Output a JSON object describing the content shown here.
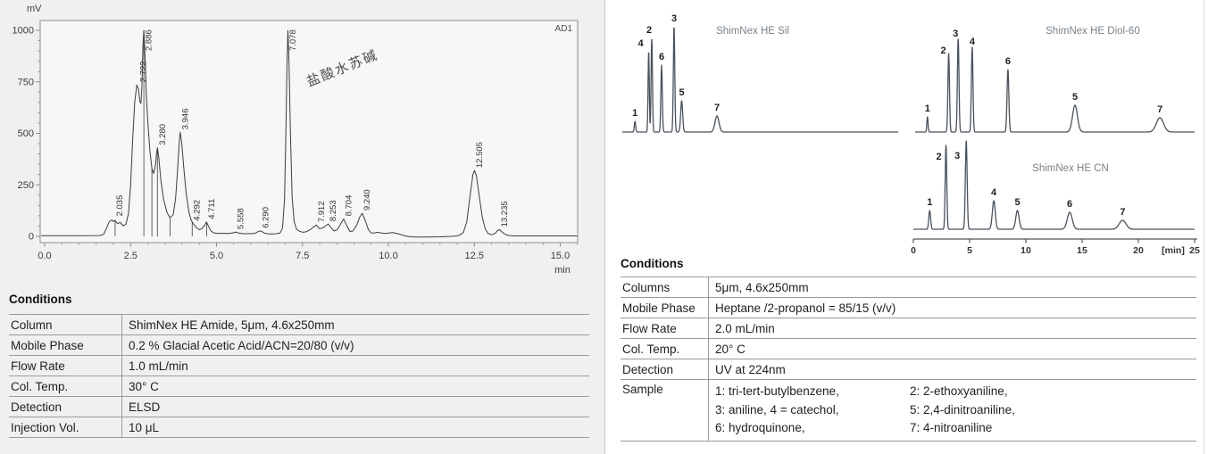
{
  "colors": {
    "left_panel_bg": "#f0f0f1",
    "plot_bg": "#f7f7f8",
    "frame": "#8c8c8c",
    "curve_left": "#3d3d3d",
    "curve_right": "#49525c",
    "table_line": "#9a9a9a",
    "chart_title_text": "#79828a",
    "axis_text": "#3c3c3c"
  },
  "left_panel": {
    "plot": {
      "y_axis_unit": "mV",
      "x_axis_unit": "min",
      "channel_label": "AD1",
      "annotation": "盐酸水苏碱",
      "y_tick_labels": [
        "0",
        "250",
        "500",
        "750",
        "1000"
      ],
      "x_tick_labels": [
        "0.0",
        "2.5",
        "5.0",
        "7.5",
        "10.0",
        "12.5",
        "15.0"
      ]
    },
    "conditions_title": "Conditions",
    "conditions_rows": [
      {
        "label": "Column",
        "value": "ShimNex HE Amide, 5μm, 4.6x250mm"
      },
      {
        "label": "Mobile Phase",
        "value": "0.2 % Glacial Acetic Acid/ACN=20/80 (v/v)"
      },
      {
        "label": "Flow Rate",
        "value": "1.0 mL/min"
      },
      {
        "label": "Col. Temp.",
        "value": "30° C"
      },
      {
        "label": "Detection",
        "value": "ELSD"
      },
      {
        "label": "Injection Vol.",
        "value": "10 μL"
      }
    ]
  },
  "right_panel": {
    "axis_tick_labels": [
      "0",
      "5",
      "10",
      "15",
      "20",
      "25"
    ],
    "axis_unit": "[min]",
    "conditions_title": "Conditions",
    "conditions_rows": [
      {
        "label": "Columns",
        "value": "5μm, 4.6x250mm"
      },
      {
        "label": "Mobile Phase",
        "value": "Heptane /2-propanol = 85/15 (v/v)"
      },
      {
        "label": "Flow Rate",
        "value": "2.0 mL/min"
      },
      {
        "label": "Col. Temp.",
        "value": "20° C"
      },
      {
        "label": "Detection",
        "value": "UV at 224nm"
      }
    ],
    "sample_row": {
      "label": "Sample",
      "col1": [
        "1: tri-tert-butylbenzene,",
        "3: aniline,   4 = catechol,",
        "6: hydroquinone,"
      ],
      "col2": [
        "2: 2-ethoxyaniline,",
        "5: 2,4-dinitroaniline,",
        "7: 4-nitroaniline"
      ]
    }
  },
  "chart_data": [
    {
      "id": "he-amide",
      "type": "line",
      "title": "",
      "detector": "AD1",
      "xlabel": "min",
      "ylabel": "mV",
      "xlim": [
        0,
        15.5
      ],
      "ylim": [
        0,
        1050
      ],
      "x_ticks": [
        0,
        2.5,
        5,
        7.5,
        10,
        12.5,
        15
      ],
      "y_ticks": [
        0,
        250,
        500,
        750,
        1000
      ],
      "annotation": {
        "text": "盐酸水苏碱",
        "peak_rt": 7.078
      },
      "peaks": [
        {
          "label": "2.035",
          "rt": 2.035,
          "mv": 85
        },
        {
          "label": "2.722",
          "rt": 2.722,
          "mv": 735
        },
        {
          "label": "2.886",
          "rt": 2.886,
          "mv": 1000
        },
        {
          "label": "3.280",
          "rt": 3.28,
          "mv": 430
        },
        {
          "label": "3.946",
          "rt": 3.946,
          "mv": 505
        },
        {
          "label": "4.292",
          "rt": 4.292,
          "mv": 62
        },
        {
          "label": "4.711",
          "rt": 4.711,
          "mv": 70
        },
        {
          "label": "5.558",
          "rt": 5.558,
          "mv": 21
        },
        {
          "label": "6.290",
          "rt": 6.29,
          "mv": 27
        },
        {
          "label": "7.078",
          "rt": 7.078,
          "mv": 1000
        },
        {
          "label": "7.912",
          "rt": 7.912,
          "mv": 55
        },
        {
          "label": "8.253",
          "rt": 8.253,
          "mv": 60
        },
        {
          "label": "8.704",
          "rt": 8.704,
          "mv": 85
        },
        {
          "label": "9.240",
          "rt": 9.24,
          "mv": 112
        },
        {
          "label": "12.505",
          "rt": 12.505,
          "mv": 320
        },
        {
          "label": "13.235",
          "rt": 13.235,
          "mv": 33
        }
      ],
      "drop_lines": [
        2.05,
        2.886,
        3.12,
        3.28,
        3.65,
        4.292,
        4.711
      ],
      "curve_points": [
        [
          -0.1,
          3
        ],
        [
          0,
          3
        ],
        [
          1,
          3
        ],
        [
          1.6,
          4
        ],
        [
          1.72,
          10
        ],
        [
          1.8,
          40
        ],
        [
          1.88,
          72
        ],
        [
          1.95,
          80
        ],
        [
          2,
          72
        ],
        [
          2.05,
          78
        ],
        [
          2.12,
          62
        ],
        [
          2.2,
          68
        ],
        [
          2.28,
          52
        ],
        [
          2.36,
          58
        ],
        [
          2.44,
          110
        ],
        [
          2.5,
          250
        ],
        [
          2.56,
          470
        ],
        [
          2.62,
          650
        ],
        [
          2.68,
          735
        ],
        [
          2.73,
          715
        ],
        [
          2.77,
          655
        ],
        [
          2.8,
          645
        ],
        [
          2.83,
          730
        ],
        [
          2.86,
          930
        ],
        [
          2.886,
          1000
        ],
        [
          2.92,
          880
        ],
        [
          2.96,
          680
        ],
        [
          3,
          560
        ],
        [
          3.06,
          420
        ],
        [
          3.12,
          330
        ],
        [
          3.17,
          305
        ],
        [
          3.22,
          340
        ],
        [
          3.26,
          410
        ],
        [
          3.28,
          430
        ],
        [
          3.32,
          385
        ],
        [
          3.38,
          275
        ],
        [
          3.46,
          180
        ],
        [
          3.56,
          115
        ],
        [
          3.65,
          90
        ],
        [
          3.74,
          105
        ],
        [
          3.81,
          185
        ],
        [
          3.87,
          330
        ],
        [
          3.92,
          465
        ],
        [
          3.946,
          505
        ],
        [
          3.99,
          450
        ],
        [
          4.05,
          330
        ],
        [
          4.12,
          205
        ],
        [
          4.2,
          115
        ],
        [
          4.26,
          80
        ],
        [
          4.32,
          62
        ],
        [
          4.4,
          45
        ],
        [
          4.5,
          32
        ],
        [
          4.58,
          38
        ],
        [
          4.65,
          52
        ],
        [
          4.71,
          70
        ],
        [
          4.77,
          48
        ],
        [
          4.84,
          26
        ],
        [
          4.92,
          17
        ],
        [
          5.05,
          14
        ],
        [
          5.2,
          15
        ],
        [
          5.35,
          14
        ],
        [
          5.48,
          17
        ],
        [
          5.56,
          21
        ],
        [
          5.64,
          16
        ],
        [
          5.78,
          13
        ],
        [
          5.95,
          13
        ],
        [
          6.1,
          14
        ],
        [
          6.2,
          22
        ],
        [
          6.29,
          27
        ],
        [
          6.38,
          17
        ],
        [
          6.5,
          12
        ],
        [
          6.62,
          12
        ],
        [
          6.75,
          13
        ],
        [
          6.85,
          16
        ],
        [
          6.92,
          40
        ],
        [
          6.98,
          180
        ],
        [
          7.02,
          520
        ],
        [
          7.05,
          830
        ],
        [
          7.078,
          1000
        ],
        [
          7.11,
          840
        ],
        [
          7.15,
          500
        ],
        [
          7.2,
          190
        ],
        [
          7.26,
          70
        ],
        [
          7.33,
          34
        ],
        [
          7.42,
          24
        ],
        [
          7.52,
          20
        ],
        [
          7.62,
          23
        ],
        [
          7.72,
          32
        ],
        [
          7.82,
          45
        ],
        [
          7.91,
          55
        ],
        [
          7.99,
          38
        ],
        [
          8.08,
          40
        ],
        [
          8.17,
          50
        ],
        [
          8.25,
          60
        ],
        [
          8.33,
          42
        ],
        [
          8.42,
          26
        ],
        [
          8.52,
          34
        ],
        [
          8.61,
          60
        ],
        [
          8.7,
          85
        ],
        [
          8.79,
          52
        ],
        [
          8.88,
          24
        ],
        [
          8.97,
          26
        ],
        [
          9.08,
          55
        ],
        [
          9.17,
          95
        ],
        [
          9.24,
          112
        ],
        [
          9.32,
          80
        ],
        [
          9.42,
          32
        ],
        [
          9.5,
          16
        ],
        [
          9.6,
          17
        ],
        [
          9.7,
          20
        ],
        [
          9.8,
          16
        ],
        [
          9.92,
          14
        ],
        [
          10.02,
          16
        ],
        [
          10.12,
          18
        ],
        [
          10.22,
          15
        ],
        [
          10.32,
          11
        ],
        [
          10.45,
          4
        ],
        [
          10.6,
          -1
        ],
        [
          10.8,
          -3
        ],
        [
          11.1,
          -3
        ],
        [
          11.5,
          -2
        ],
        [
          11.85,
          0
        ],
        [
          12.05,
          4
        ],
        [
          12.18,
          18
        ],
        [
          12.28,
          70
        ],
        [
          12.38,
          200
        ],
        [
          12.46,
          300
        ],
        [
          12.505,
          320
        ],
        [
          12.56,
          295
        ],
        [
          12.64,
          200
        ],
        [
          12.73,
          95
        ],
        [
          12.82,
          35
        ],
        [
          12.9,
          14
        ],
        [
          13,
          8
        ],
        [
          13.1,
          14
        ],
        [
          13.18,
          28
        ],
        [
          13.235,
          33
        ],
        [
          13.3,
          22
        ],
        [
          13.4,
          9
        ],
        [
          13.52,
          4
        ],
        [
          13.7,
          2
        ],
        [
          14.2,
          2
        ],
        [
          15,
          2
        ],
        [
          15.5,
          2
        ]
      ]
    },
    {
      "id": "shimnex-he-sil",
      "type": "line",
      "title": "ShimNex HE Sil",
      "x_unit": "min",
      "xlim": [
        0,
        25
      ],
      "peaks": [
        {
          "n": "1",
          "rt": 1.15,
          "height": 12,
          "width_sigma": 0.06
        },
        {
          "n": "4",
          "rt": 2.39,
          "height": 90,
          "width_sigma": 0.055,
          "label_dx": -9
        },
        {
          "n": "2",
          "rt": 2.67,
          "height": 105,
          "width_sigma": 0.06,
          "label_dx": -3
        },
        {
          "n": "6",
          "rt": 3.56,
          "height": 75,
          "width_sigma": 0.065
        },
        {
          "n": "3",
          "rt": 4.69,
          "height": 118,
          "width_sigma": 0.065
        },
        {
          "n": "5",
          "rt": 5.38,
          "height": 35,
          "width_sigma": 0.09
        },
        {
          "n": "7",
          "rt": 8.58,
          "height": 18,
          "width_sigma": 0.18
        }
      ]
    },
    {
      "id": "shimnex-he-diol-60",
      "type": "line",
      "title": "ShimNex HE Diol-60",
      "x_unit": "min",
      "xlim": [
        0,
        25
      ],
      "peaks": [
        {
          "n": "1",
          "rt": 1.1,
          "height": 17,
          "width_sigma": 0.055
        },
        {
          "n": "2",
          "rt": 3.0,
          "height": 88,
          "width_sigma": 0.07,
          "label_dx": -6,
          "label_dy": 6
        },
        {
          "n": "3",
          "rt": 3.85,
          "height": 105,
          "width_sigma": 0.07,
          "label_dx": -3,
          "label_dy": 4
        },
        {
          "n": "4",
          "rt": 5.1,
          "height": 95,
          "width_sigma": 0.07,
          "label_dy": 3
        },
        {
          "n": "6",
          "rt": 8.3,
          "height": 70,
          "width_sigma": 0.08
        },
        {
          "n": "5",
          "rt": 14.3,
          "height": 30,
          "width_sigma": 0.22
        },
        {
          "n": "7",
          "rt": 21.9,
          "height": 16,
          "width_sigma": 0.32
        }
      ]
    },
    {
      "id": "shimnex-he-cn",
      "type": "line",
      "title": "ShimNex HE CN",
      "x_unit": "min",
      "xlim": [
        0,
        25
      ],
      "peaks": [
        {
          "n": "1",
          "rt": 1.45,
          "height": 21,
          "width_sigma": 0.08
        },
        {
          "n": "2",
          "rt": 2.9,
          "height": 94,
          "width_sigma": 0.07,
          "label_dx": -8,
          "label_dy": 22
        },
        {
          "n": "3",
          "rt": 4.7,
          "height": 99,
          "width_sigma": 0.08,
          "label_dx": -10,
          "label_dy": 26
        },
        {
          "n": "4",
          "rt": 7.15,
          "height": 32,
          "width_sigma": 0.13
        },
        {
          "n": "5",
          "rt": 9.25,
          "height": 21,
          "width_sigma": 0.15
        },
        {
          "n": "6",
          "rt": 13.9,
          "height": 19,
          "width_sigma": 0.22
        },
        {
          "n": "7",
          "rt": 18.6,
          "height": 10,
          "width_sigma": 0.3
        }
      ]
    }
  ]
}
